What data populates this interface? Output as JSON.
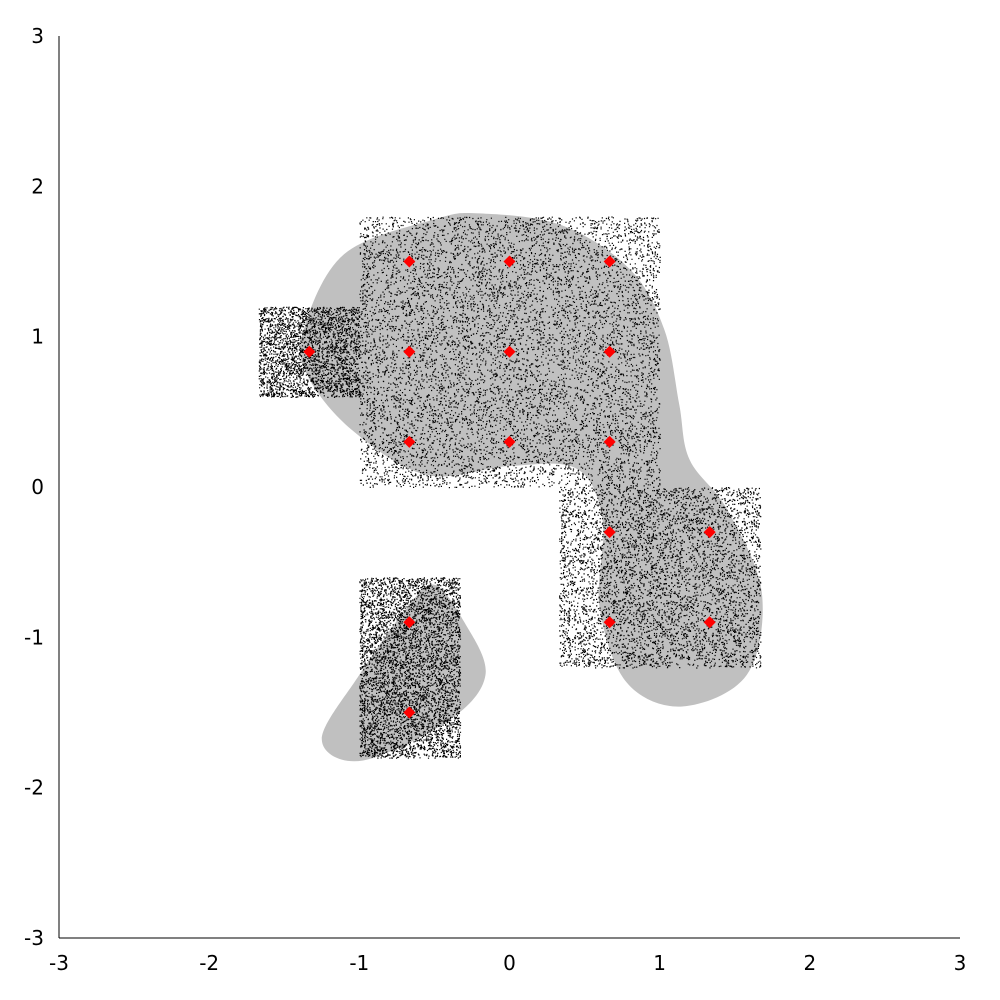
{
  "chart_data": {
    "type": "scatter",
    "title": "",
    "xlabel": "",
    "ylabel": "",
    "xlim": [
      -3,
      3
    ],
    "ylim": [
      -3,
      3
    ],
    "grid": false,
    "legend": "none",
    "x_ticks": [
      "-3",
      "-2",
      "-1",
      "0",
      "1",
      "2",
      "3"
    ],
    "y_ticks": [
      "-3",
      "-2",
      "-1",
      "0",
      "1",
      "2",
      "3"
    ],
    "colors": {
      "markers": "#ff0000",
      "regions": "#c0c0c0",
      "samples": "#000000",
      "axes": "#000000"
    },
    "series": [
      {
        "marker": "diamond",
        "points": [
          [
            -0.667,
            1.5
          ],
          [
            0.0,
            1.5
          ],
          [
            0.667,
            1.5
          ],
          [
            -1.333,
            0.9
          ],
          [
            -0.667,
            0.9
          ],
          [
            0.0,
            0.9
          ],
          [
            0.667,
            0.9
          ],
          [
            -0.667,
            0.3
          ],
          [
            0.0,
            0.3
          ],
          [
            0.667,
            0.3
          ],
          [
            0.667,
            -0.3
          ],
          [
            1.333,
            -0.3
          ],
          [
            0.667,
            -0.9
          ],
          [
            1.333,
            -0.9
          ],
          [
            -0.667,
            -0.9
          ],
          [
            -0.667,
            -1.5
          ]
        ]
      }
    ],
    "regions": [
      {
        "shape": "smooth-blob",
        "outline": [
          [
            -1.37,
            1.05
          ],
          [
            -1.1,
            1.55
          ],
          [
            -0.5,
            1.78
          ],
          [
            -0.2,
            1.82
          ],
          [
            0.35,
            1.74
          ],
          [
            0.8,
            1.45
          ],
          [
            1.03,
            1.05
          ],
          [
            1.13,
            0.55
          ],
          [
            1.2,
            0.18
          ],
          [
            1.45,
            -0.15
          ],
          [
            1.68,
            -0.7
          ],
          [
            1.58,
            -1.25
          ],
          [
            1.15,
            -1.46
          ],
          [
            0.78,
            -1.3
          ],
          [
            0.6,
            -0.8
          ],
          [
            0.62,
            -0.22
          ],
          [
            0.45,
            0.12
          ],
          [
            0.0,
            0.14
          ],
          [
            -0.55,
            0.08
          ],
          [
            -1.05,
            0.38
          ],
          [
            -1.35,
            0.75
          ]
        ]
      },
      {
        "shape": "smooth-blob",
        "outline": [
          [
            -0.5,
            -0.65
          ],
          [
            -0.3,
            -0.9
          ],
          [
            -0.16,
            -1.25
          ],
          [
            -0.4,
            -1.55
          ],
          [
            -0.98,
            -1.82
          ],
          [
            -1.25,
            -1.68
          ],
          [
            -1.0,
            -1.25
          ],
          [
            -0.68,
            -0.8
          ]
        ]
      }
    ],
    "sample_boxes": [
      {
        "x": [
          -1.0,
          1.0
        ],
        "y": [
          0.0,
          1.8
        ]
      },
      {
        "x": [
          -1.67,
          -1.0
        ],
        "y": [
          0.6,
          1.2
        ]
      },
      {
        "x": [
          0.33,
          1.67
        ],
        "y": [
          -1.2,
          0.0
        ]
      },
      {
        "x": [
          -1.0,
          -0.33
        ],
        "y": [
          -1.8,
          -0.6
        ]
      }
    ]
  }
}
